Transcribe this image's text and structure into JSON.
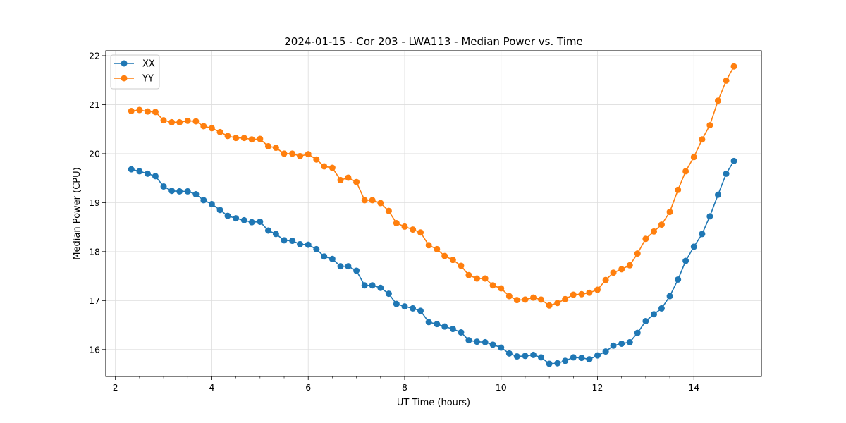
{
  "chart_data": {
    "type": "line",
    "title": "2024-01-15 - Cor 203 - LWA113 - Median Power vs. Time",
    "xlabel": "UT Time (hours)",
    "ylabel": "Median Power (CPU)",
    "xlim": [
      1.8,
      15.4
    ],
    "ylim": [
      15.45,
      22.1
    ],
    "xticks": [
      2,
      4,
      6,
      8,
      10,
      12,
      14
    ],
    "yticks": [
      16,
      17,
      18,
      19,
      20,
      21,
      22
    ],
    "grid": true,
    "legend_position": "top-left",
    "x": [
      2.33,
      2.5,
      2.67,
      2.83,
      3.0,
      3.17,
      3.33,
      3.5,
      3.67,
      3.83,
      4.0,
      4.17,
      4.33,
      4.5,
      4.67,
      4.83,
      5.0,
      5.17,
      5.33,
      5.5,
      5.67,
      5.83,
      6.0,
      6.17,
      6.33,
      6.5,
      6.67,
      6.83,
      7.0,
      7.17,
      7.33,
      7.5,
      7.67,
      7.83,
      8.0,
      8.17,
      8.33,
      8.5,
      8.67,
      8.83,
      9.0,
      9.17,
      9.33,
      9.5,
      9.67,
      9.83,
      10.0,
      10.17,
      10.33,
      10.5,
      10.67,
      10.83,
      11.0,
      11.17,
      11.33,
      11.5,
      11.67,
      11.83,
      12.0,
      12.17,
      12.33,
      12.5,
      12.67,
      12.83,
      13.0,
      13.17,
      13.33,
      13.5,
      13.67,
      13.83,
      14.0,
      14.17,
      14.33,
      14.5,
      14.67,
      14.83
    ],
    "series": [
      {
        "name": "XX",
        "color": "#1f77b4",
        "values": [
          19.68,
          19.64,
          19.59,
          19.54,
          19.33,
          19.24,
          19.23,
          19.23,
          19.17,
          19.05,
          18.97,
          18.85,
          18.73,
          18.68,
          18.64,
          18.6,
          18.61,
          18.43,
          18.36,
          18.23,
          18.22,
          18.15,
          18.14,
          18.05,
          17.9,
          17.85,
          17.7,
          17.7,
          17.61,
          17.31,
          17.31,
          17.26,
          17.14,
          16.93,
          16.88,
          16.84,
          16.79,
          16.56,
          16.52,
          16.47,
          16.42,
          16.35,
          16.19,
          16.16,
          16.15,
          16.1,
          16.04,
          15.92,
          15.86,
          15.87,
          15.89,
          15.84,
          15.71,
          15.72,
          15.77,
          15.84,
          15.83,
          15.8,
          15.88,
          15.96,
          16.08,
          16.12,
          16.15,
          16.34,
          16.58,
          16.72,
          16.84,
          17.09,
          17.43,
          17.81,
          18.1,
          18.36,
          18.72,
          19.16,
          19.59,
          19.85
        ]
      },
      {
        "name": "YY",
        "color": "#ff7f0e",
        "values": [
          20.87,
          20.89,
          20.86,
          20.85,
          20.68,
          20.64,
          20.64,
          20.67,
          20.66,
          20.56,
          20.52,
          20.44,
          20.36,
          20.32,
          20.32,
          20.29,
          20.3,
          20.15,
          20.12,
          20.0,
          20.0,
          19.95,
          19.99,
          19.88,
          19.74,
          19.71,
          19.46,
          19.51,
          19.42,
          19.05,
          19.05,
          18.99,
          18.83,
          18.58,
          18.51,
          18.45,
          18.39,
          18.13,
          18.05,
          17.91,
          17.83,
          17.71,
          17.52,
          17.45,
          17.45,
          17.31,
          17.25,
          17.09,
          17.01,
          17.02,
          17.06,
          17.02,
          16.9,
          16.95,
          17.03,
          17.12,
          17.13,
          17.16,
          17.22,
          17.42,
          17.57,
          17.64,
          17.72,
          17.96,
          18.26,
          18.41,
          18.55,
          18.81,
          19.26,
          19.64,
          19.93,
          20.29,
          20.58,
          21.08,
          21.49,
          21.78
        ]
      }
    ]
  }
}
